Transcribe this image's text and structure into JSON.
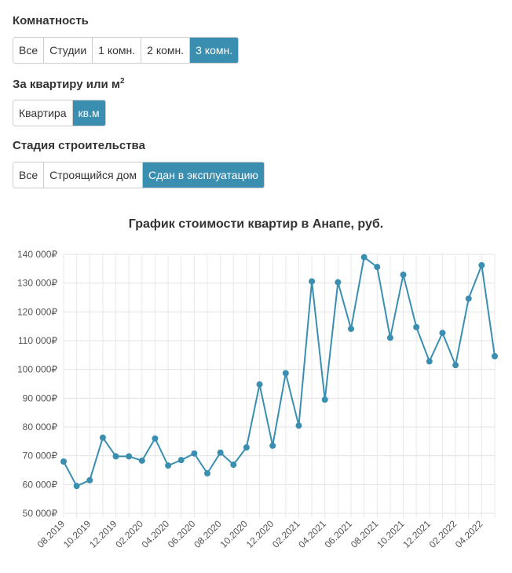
{
  "filters": {
    "rooms": {
      "label": "Комнатность",
      "options": [
        "Все",
        "Студии",
        "1 комн.",
        "2 комн.",
        "3 комн."
      ],
      "active_index": 4
    },
    "unit": {
      "label": "За квартиру или м",
      "label_sup": "2",
      "options": [
        "Квартира",
        "кв.м"
      ],
      "active_index": 1
    },
    "stage": {
      "label": "Стадия строительства",
      "options": [
        "Все",
        "Строящийся дом",
        "Сдан в эксплуатацию"
      ],
      "active_index": 2
    }
  },
  "chart_data": {
    "type": "line",
    "title": "График стоимости квартир в Анапе, руб.",
    "y_ticks": [
      "50 000₽",
      "60 000₽",
      "70 000₽",
      "80 000₽",
      "90 000₽",
      "100 000₽",
      "110 000₽",
      "120 000₽",
      "130 000₽",
      "140 000₽"
    ],
    "ylim": [
      50000,
      140000
    ],
    "x_tick_labels": [
      "08.2019",
      "10.2019",
      "12.2019",
      "02.2020",
      "04.2020",
      "06.2020",
      "08.2020",
      "10.2020",
      "12.2020",
      "02.2021",
      "04.2021",
      "06.2021",
      "08.2021",
      "10.2021",
      "12.2021",
      "02.2022",
      "04.2022"
    ],
    "x": [
      "08.2019",
      "09.2019",
      "10.2019",
      "11.2019",
      "12.2019",
      "01.2020",
      "02.2020",
      "03.2020",
      "04.2020",
      "05.2020",
      "06.2020",
      "07.2020",
      "08.2020",
      "09.2020",
      "10.2020",
      "11.2020",
      "12.2020",
      "01.2021",
      "02.2021",
      "03.2021",
      "04.2021",
      "05.2021",
      "06.2021",
      "07.2021",
      "08.2021",
      "09.2021",
      "10.2021",
      "11.2021",
      "12.2021",
      "01.2022",
      "02.2022",
      "03.2022",
      "04.2022",
      "05.2022"
    ],
    "values": [
      68000,
      59500,
      61500,
      76300,
      69800,
      69800,
      68300,
      76000,
      66600,
      68500,
      70800,
      63900,
      71100,
      66900,
      72900,
      94800,
      73500,
      98700,
      80500,
      130600,
      89500,
      130300,
      114100,
      139000,
      135600,
      111000,
      132900,
      114700,
      102800,
      112700,
      101500,
      124600,
      136200,
      104600
    ],
    "grid": true,
    "color": "#3a8fb0"
  }
}
